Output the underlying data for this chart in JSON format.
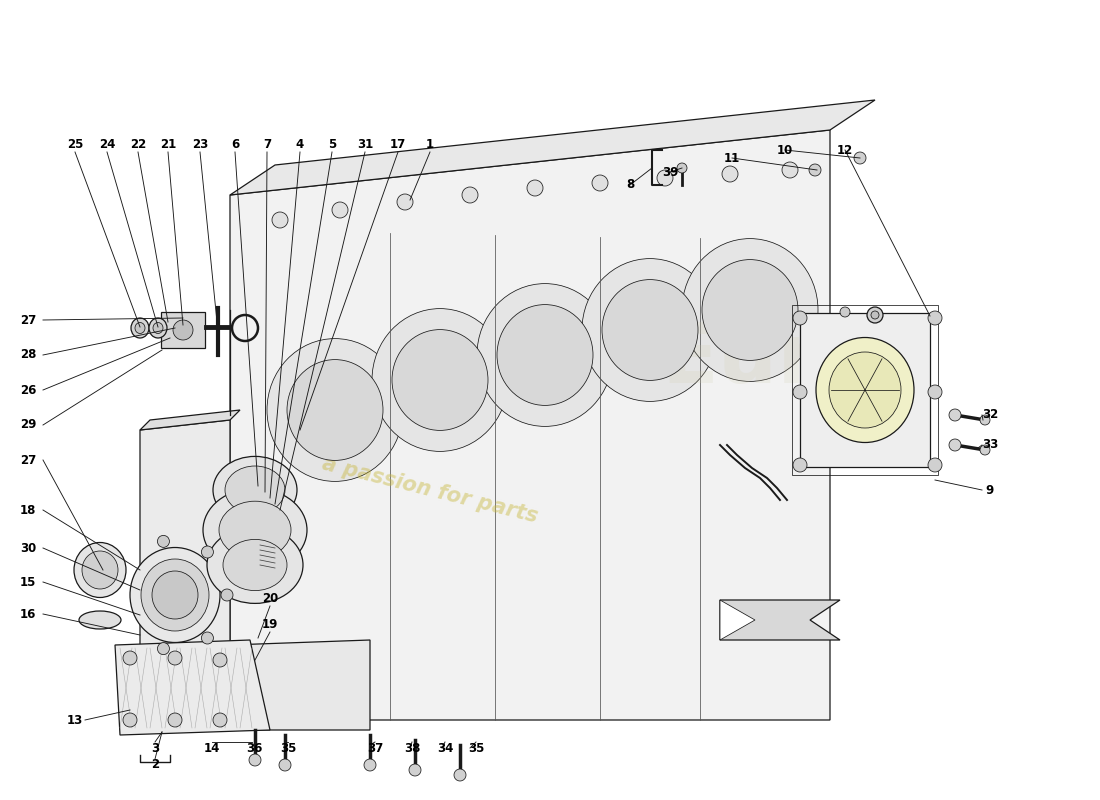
{
  "bg_color": "#ffffff",
  "dc": "#1a1a1a",
  "lw": 0.9,
  "lw_thin": 0.55,
  "lw_thick": 1.3,
  "label_fs": 8.5,
  "label_color": "#000000"
}
